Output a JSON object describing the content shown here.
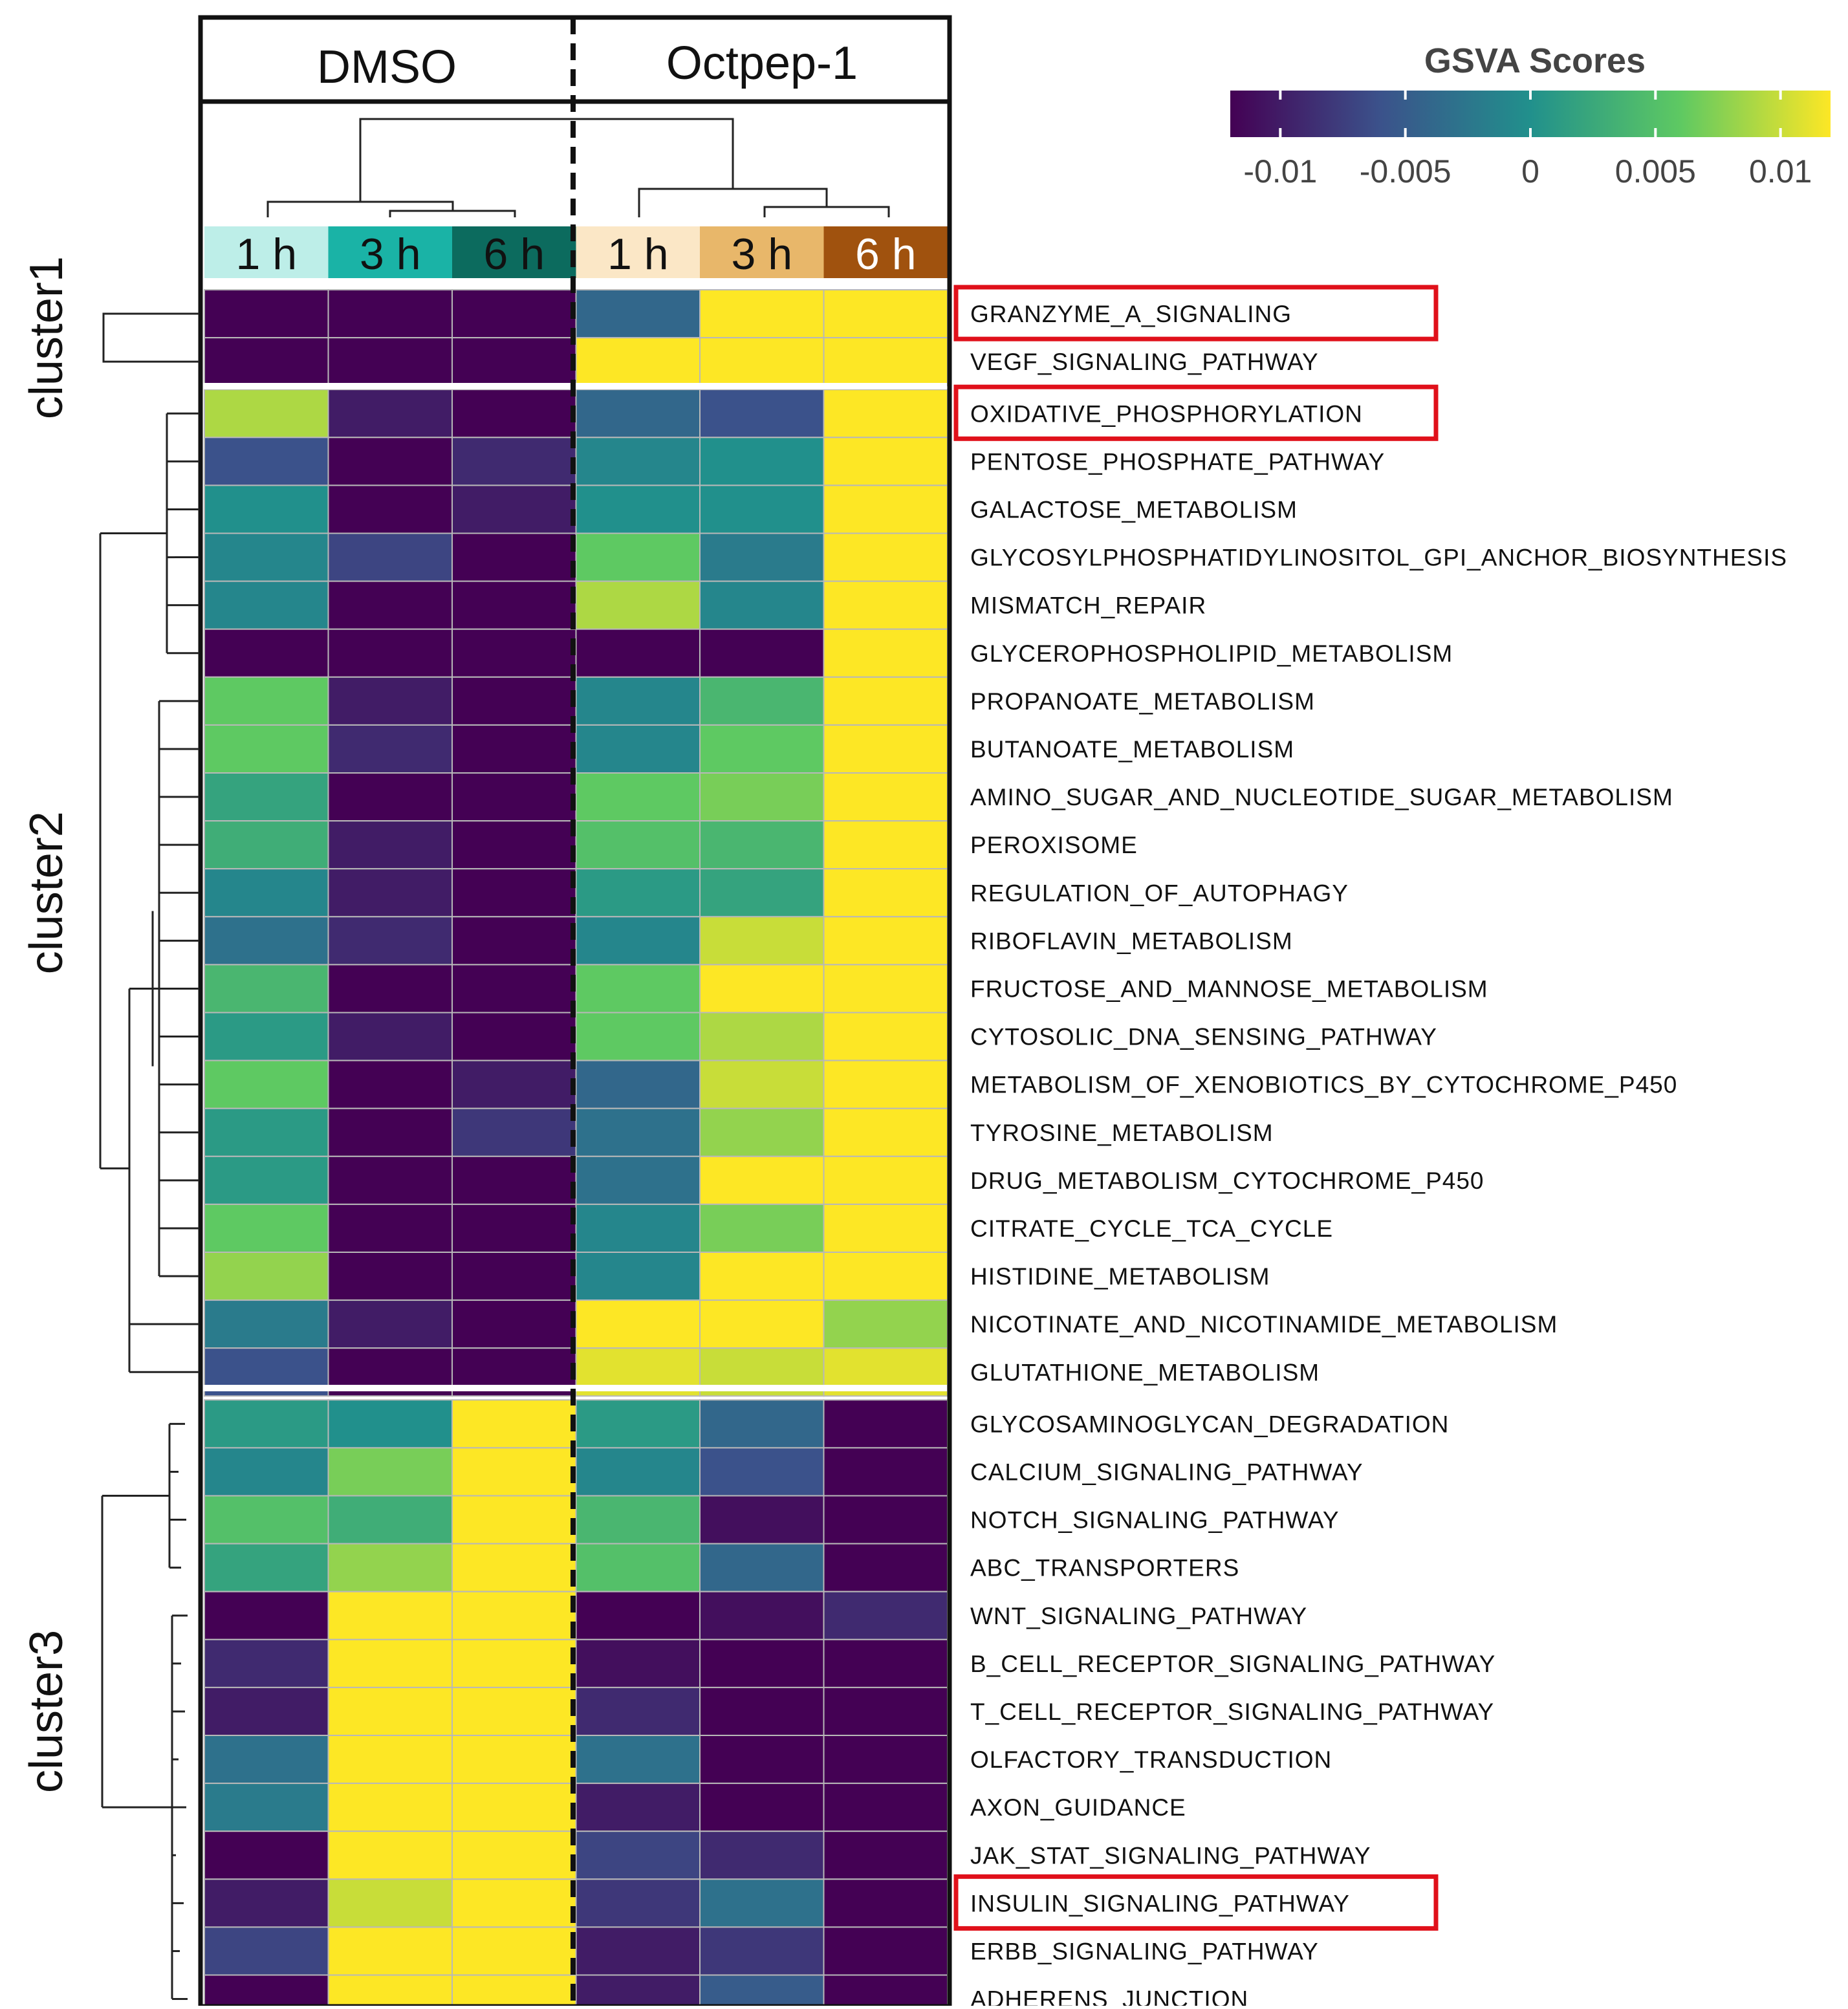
{
  "chart_data": {
    "type": "heatmap",
    "legend": {
      "title": "GSVA Scores",
      "ticks": [
        {
          "value": -0.01,
          "label": "-0.01"
        },
        {
          "value": -0.005,
          "label": "-0.005"
        },
        {
          "value": 0,
          "label": "0"
        },
        {
          "value": 0.005,
          "label": "0.005"
        },
        {
          "value": 0.01,
          "label": "0.01"
        }
      ],
      "range": [
        -0.012,
        0.012
      ],
      "palette": [
        "#440154",
        "#3b528b",
        "#21908c",
        "#5ec962",
        "#fde725"
      ]
    },
    "groups": [
      {
        "name": "DMSO",
        "columns": 3
      },
      {
        "name": "Octpep-1",
        "columns": 3
      }
    ],
    "columns": [
      {
        "label": "1 h",
        "group": "DMSO",
        "color": "#bdeee8",
        "text_color": "#111111"
      },
      {
        "label": "3 h",
        "group": "DMSO",
        "color": "#1ab3a6",
        "text_color": "#111111"
      },
      {
        "label": "6 h",
        "group": "DMSO",
        "color": "#0c6b5e",
        "text_color": "#111111"
      },
      {
        "label": "1 h",
        "group": "Octpep-1",
        "color": "#fbe7c6",
        "text_color": "#111111"
      },
      {
        "label": "3 h",
        "group": "Octpep-1",
        "color": "#e8b76a",
        "text_color": "#111111"
      },
      {
        "label": "6 h",
        "group": "Octpep-1",
        "color": "#a0520e",
        "text_color": "#ffffff"
      }
    ],
    "clusters": [
      {
        "name": "cluster1",
        "rows": 2
      },
      {
        "name": "cluster2",
        "rows": 21
      },
      {
        "name": "cluster3",
        "rows": 13
      }
    ],
    "rows": [
      {
        "label": "GRANZYME_A_SIGNALING",
        "highlight": true,
        "values": [
          -0.012,
          -0.012,
          -0.012,
          -0.004,
          0.012,
          0.012
        ]
      },
      {
        "label": "VEGF_SIGNALING_PATHWAY",
        "highlight": false,
        "values": [
          -0.012,
          -0.012,
          -0.012,
          0.012,
          0.012,
          0.012
        ]
      },
      {
        "label": "OXIDATIVE_PHOSPHORYLATION",
        "highlight": true,
        "values": [
          0.009,
          -0.01,
          -0.012,
          -0.004,
          -0.006,
          0.012
        ]
      },
      {
        "label": "PENTOSE_PHOSPHATE_PATHWAY",
        "highlight": false,
        "values": [
          -0.006,
          -0.012,
          -0.009,
          -0.001,
          0.0,
          0.012
        ]
      },
      {
        "label": "GALACTOSE_METABOLISM",
        "highlight": false,
        "values": [
          0.0,
          -0.012,
          -0.01,
          0.0,
          0.0,
          0.012
        ]
      },
      {
        "label": "GLYCOSYLPHOSPHATIDYLINOSITOL_GPI_ANCHOR_BIOSYNTHESIS",
        "highlight": false,
        "values": [
          -0.001,
          -0.007,
          -0.012,
          0.006,
          -0.002,
          0.012
        ]
      },
      {
        "label": "MISMATCH_REPAIR",
        "highlight": false,
        "values": [
          -0.001,
          -0.012,
          -0.012,
          0.009,
          -0.001,
          0.012
        ]
      },
      {
        "label": "GLYCEROPHOSPHOLIPID_METABOLISM",
        "highlight": false,
        "values": [
          -0.012,
          -0.012,
          -0.012,
          -0.012,
          -0.012,
          0.012
        ]
      },
      {
        "label": "PROPANOATE_METABOLISM",
        "highlight": false,
        "values": [
          0.006,
          -0.01,
          -0.012,
          -0.001,
          0.004,
          0.012
        ]
      },
      {
        "label": "BUTANOATE_METABOLISM",
        "highlight": false,
        "values": [
          0.006,
          -0.009,
          -0.012,
          -0.001,
          0.006,
          0.012
        ]
      },
      {
        "label": "AMINO_SUGAR_AND_NUCLEOTIDE_SUGAR_METABOLISM",
        "highlight": false,
        "values": [
          0.002,
          -0.012,
          -0.012,
          0.006,
          0.007,
          0.012
        ]
      },
      {
        "label": "PEROXISOME",
        "highlight": false,
        "values": [
          0.003,
          -0.01,
          -0.012,
          0.005,
          0.004,
          0.012
        ]
      },
      {
        "label": "REGULATION_OF_AUTOPHAGY",
        "highlight": false,
        "values": [
          -0.001,
          -0.01,
          -0.012,
          0.001,
          0.002,
          0.012
        ]
      },
      {
        "label": "RIBOFLAVIN_METABOLISM",
        "highlight": false,
        "values": [
          -0.003,
          -0.009,
          -0.012,
          -0.001,
          0.01,
          0.012
        ]
      },
      {
        "label": "FRUCTOSE_AND_MANNOSE_METABOLISM",
        "highlight": false,
        "values": [
          0.004,
          -0.012,
          -0.012,
          0.006,
          0.012,
          0.012
        ]
      },
      {
        "label": "CYTOSOLIC_DNA_SENSING_PATHWAY",
        "highlight": false,
        "values": [
          0.001,
          -0.01,
          -0.012,
          0.006,
          0.009,
          0.012
        ]
      },
      {
        "label": "METABOLISM_OF_XENOBIOTICS_BY_CYTOCHROME_P450",
        "highlight": false,
        "values": [
          0.006,
          -0.012,
          -0.01,
          -0.004,
          0.01,
          0.012
        ]
      },
      {
        "label": "TYROSINE_METABOLISM",
        "highlight": false,
        "values": [
          0.001,
          -0.012,
          -0.008,
          -0.003,
          0.008,
          0.012
        ]
      },
      {
        "label": "DRUG_METABOLISM_CYTOCHROME_P450",
        "highlight": false,
        "values": [
          0.001,
          -0.012,
          -0.012,
          -0.003,
          0.012,
          0.012
        ]
      },
      {
        "label": "CITRATE_CYCLE_TCA_CYCLE",
        "highlight": false,
        "values": [
          0.006,
          -0.012,
          -0.012,
          -0.001,
          0.007,
          0.012
        ]
      },
      {
        "label": "HISTIDINE_METABOLISM",
        "highlight": false,
        "values": [
          0.008,
          -0.012,
          -0.012,
          -0.001,
          0.012,
          0.012
        ]
      },
      {
        "label": "NICOTINATE_AND_NICOTINAMIDE_METABOLISM",
        "highlight": false,
        "values": [
          -0.002,
          -0.01,
          -0.012,
          0.012,
          0.012,
          0.008
        ]
      },
      {
        "label": "GLUTATHIONE_METABOLISM",
        "highlight": false,
        "values": [
          -0.006,
          -0.012,
          -0.012,
          0.011,
          0.01,
          0.011
        ]
      },
      {
        "label": "GLYCOSAMINOGLYCAN_DEGRADATION",
        "highlight": false,
        "values": [
          0.001,
          0.0,
          0.012,
          0.001,
          -0.004,
          -0.012
        ]
      },
      {
        "label": "CALCIUM_SIGNALING_PATHWAY",
        "highlight": false,
        "values": [
          -0.001,
          0.007,
          0.012,
          -0.001,
          -0.006,
          -0.012
        ]
      },
      {
        "label": "NOTCH_SIGNALING_PATHWAY",
        "highlight": false,
        "values": [
          0.005,
          0.003,
          0.012,
          0.004,
          -0.011,
          -0.012
        ]
      },
      {
        "label": "ABC_TRANSPORTERS",
        "highlight": false,
        "values": [
          0.002,
          0.008,
          0.012,
          0.005,
          -0.004,
          -0.012
        ]
      },
      {
        "label": "WNT_SIGNALING_PATHWAY",
        "highlight": false,
        "values": [
          -0.012,
          0.012,
          0.012,
          -0.012,
          -0.011,
          -0.009
        ]
      },
      {
        "label": "B_CELL_RECEPTOR_SIGNALING_PATHWAY",
        "highlight": false,
        "values": [
          -0.009,
          0.012,
          0.012,
          -0.011,
          -0.012,
          -0.012
        ]
      },
      {
        "label": "T_CELL_RECEPTOR_SIGNALING_PATHWAY",
        "highlight": false,
        "values": [
          -0.01,
          0.012,
          0.012,
          -0.009,
          -0.012,
          -0.012
        ]
      },
      {
        "label": "OLFACTORY_TRANSDUCTION",
        "highlight": false,
        "values": [
          -0.003,
          0.012,
          0.012,
          -0.003,
          -0.012,
          -0.012
        ]
      },
      {
        "label": "AXON_GUIDANCE",
        "highlight": false,
        "values": [
          -0.002,
          0.012,
          0.012,
          -0.01,
          -0.012,
          -0.012
        ]
      },
      {
        "label": "JAK_STAT_SIGNALING_PATHWAY",
        "highlight": false,
        "values": [
          -0.012,
          0.012,
          0.012,
          -0.007,
          -0.009,
          -0.012
        ]
      },
      {
        "label": "INSULIN_SIGNALING_PATHWAY",
        "highlight": true,
        "values": [
          -0.01,
          0.01,
          0.012,
          -0.008,
          -0.003,
          -0.012
        ]
      },
      {
        "label": "ERBB_SIGNALING_PATHWAY",
        "highlight": false,
        "values": [
          -0.007,
          0.012,
          0.012,
          -0.01,
          -0.008,
          -0.012
        ]
      },
      {
        "label": "ADHERENS_JUNCTION",
        "highlight": false,
        "values": [
          -0.012,
          0.012,
          0.012,
          -0.01,
          -0.005,
          -0.012
        ]
      }
    ]
  }
}
